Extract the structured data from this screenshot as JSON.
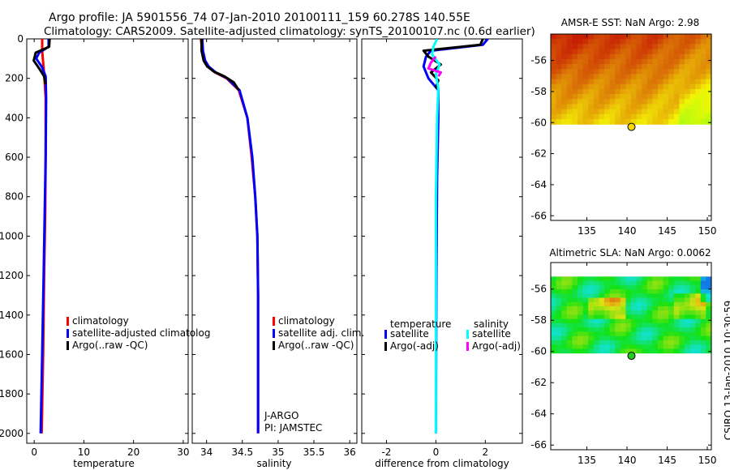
{
  "header": {
    "line1": "Argo profile: JA 5901556_74 07-Jan-2010 20100111_159 60.278S 140.55E",
    "line2": "Climatology: CARS2009. Satellite-adjusted climatology: synTS_20100107.nc (0.6d earlier)"
  },
  "credit": "CSIRO 13-Jan-2010 10:30:59",
  "chart_data": [
    {
      "id": "temperature",
      "type": "line",
      "xlabel": "temperature",
      "xlim": [
        -1.5,
        31
      ],
      "xticks": [
        0,
        10,
        20,
        30
      ],
      "ylim": [
        2050,
        0
      ],
      "yticks": [
        0,
        200,
        400,
        600,
        800,
        1000,
        1200,
        1400,
        1600,
        1800,
        2000
      ],
      "legend": [
        {
          "label": "climatology",
          "color": "#ff0000"
        },
        {
          "label": "satellite-adjusted climatolog",
          "color": "#0000ff"
        },
        {
          "label": "Argo(..raw -QC)",
          "color": "#000000"
        }
      ],
      "series": [
        {
          "name": "climatology",
          "color": "#ff0000",
          "width": 2,
          "x": [
            1.6,
            1.6,
            1.8,
            2.0,
            2.3,
            2.3,
            2.2,
            2.0,
            1.8,
            1.5
          ],
          "y": [
            0,
            60,
            120,
            180,
            300,
            600,
            900,
            1200,
            1600,
            2000
          ]
        },
        {
          "name": "satellite-adjusted climatology",
          "color": "#0000ff",
          "width": 2,
          "x": [
            2.9,
            2.9,
            1.0,
            0.4,
            1.5,
            2.3,
            2.4,
            2.3,
            2.1,
            1.9,
            1.6,
            1.3
          ],
          "y": [
            0,
            40,
            70,
            100,
            140,
            190,
            300,
            600,
            900,
            1200,
            1600,
            2000
          ]
        },
        {
          "name": "Argo(..raw -QC)",
          "color": "#000000",
          "width": 2,
          "x": [
            3.1,
            3.0,
            0.3,
            -0.1,
            1.0,
            2.0,
            2.3
          ],
          "y": [
            0,
            40,
            70,
            110,
            150,
            190,
            230
          ]
        }
      ]
    },
    {
      "id": "salinity",
      "type": "line",
      "xlabel": "salinity",
      "xlim": [
        33.8,
        36.1
      ],
      "xticks": [
        34,
        34.5,
        35,
        35.5,
        36
      ],
      "ylim": [
        2050,
        0
      ],
      "yticks": [
        0,
        200,
        400,
        600,
        800,
        1000,
        1200,
        1400,
        1600,
        1800,
        2000
      ],
      "annotation": [
        "J-ARGO",
        "PI: JAMSTEC"
      ],
      "legend": [
        {
          "label": "climatology",
          "color": "#ff0000"
        },
        {
          "label": "satellite adj. clim.",
          "color": "#0000ff"
        },
        {
          "label": "Argo(..raw -QC)",
          "color": "#000000"
        }
      ],
      "series": [
        {
          "name": "climatology",
          "color": "#ff0000",
          "width": 2,
          "x": [
            33.92,
            33.94,
            33.97,
            34.02,
            34.12,
            34.28,
            34.45,
            34.57,
            34.63,
            34.68,
            34.71,
            34.72,
            34.72,
            34.72
          ],
          "y": [
            0,
            60,
            110,
            140,
            170,
            200,
            260,
            400,
            600,
            800,
            1000,
            1300,
            1600,
            2000
          ]
        },
        {
          "name": "satellite adj. clim.",
          "color": "#0000ff",
          "width": 2,
          "x": [
            33.94,
            33.95,
            33.98,
            34.03,
            34.13,
            34.29,
            34.46,
            34.57,
            34.64,
            34.68,
            34.71,
            34.72,
            34.72,
            34.72
          ],
          "y": [
            0,
            60,
            110,
            140,
            170,
            200,
            260,
            400,
            600,
            800,
            1000,
            1300,
            1600,
            2000
          ]
        },
        {
          "name": "Argo(..raw -QC)",
          "color": "#000000",
          "width": 2,
          "x": [
            33.93,
            33.93,
            33.96,
            34.01,
            34.1,
            34.25,
            34.38,
            34.45
          ],
          "y": [
            0,
            60,
            110,
            140,
            165,
            190,
            220,
            260
          ]
        }
      ]
    },
    {
      "id": "difference",
      "type": "line",
      "xlabel": "difference from climatology",
      "xlim": [
        -3,
        3.5
      ],
      "xticks": [
        -2,
        0,
        2
      ],
      "ylim": [
        2050,
        0
      ],
      "yticks": [
        0,
        200,
        400,
        600,
        800,
        1000,
        1200,
        1400,
        1600,
        1800,
        2000
      ],
      "legend_headers": [
        "temperature",
        "salinity"
      ],
      "legend": [
        {
          "label": "satellite",
          "color": "#0000ff"
        },
        {
          "label": "Argo(-adj)",
          "color": "#000000"
        },
        {
          "label": "satellite",
          "color": "#00ffff"
        },
        {
          "label": "Argo(-adj)",
          "color": "#ff00ff"
        }
      ],
      "series": [
        {
          "name": "temperature satellite",
          "color": "#0000ff",
          "width": 2,
          "x": [
            2.1,
            1.9,
            -0.2,
            -0.4,
            -0.5,
            -0.3,
            0.1,
            0.1,
            0.05,
            0.02,
            0.0
          ],
          "y": [
            0,
            30,
            60,
            90,
            140,
            200,
            260,
            400,
            700,
            1200,
            2000
          ]
        },
        {
          "name": "temperature Argo(-adj)",
          "color": "#000000",
          "width": 2,
          "x": [
            1.9,
            1.8,
            -0.5,
            -0.3,
            0.2,
            -0.2,
            0.1,
            0.0
          ],
          "y": [
            0,
            30,
            60,
            90,
            130,
            170,
            210,
            250
          ]
        },
        {
          "name": "salinity satellite",
          "color": "#00ffff",
          "width": 2,
          "x": [
            0.05,
            -0.1,
            -0.15,
            0.15,
            0.0,
            0.1,
            0.05,
            0.0,
            0.0
          ],
          "y": [
            0,
            40,
            80,
            130,
            180,
            250,
            400,
            800,
            2000
          ]
        },
        {
          "name": "salinity Argo(-adj)",
          "color": "#ff00ff",
          "width": 2,
          "x": [
            0.0,
            -0.2,
            -0.3,
            0.2,
            0.1
          ],
          "y": [
            90,
            120,
            150,
            170,
            190
          ]
        }
      ]
    },
    {
      "id": "sst-map",
      "type": "heatmap",
      "title": "AMSR-E SST: NaN Argo: 2.98",
      "xlim": [
        130.5,
        150.5
      ],
      "ylim": [
        -66.3,
        -54.3
      ],
      "xticks": [
        135,
        140,
        145,
        150
      ],
      "yticks": [
        -56,
        -58,
        -60,
        -62,
        -64,
        -66
      ],
      "data_ylim": [
        -60.1,
        -54.3
      ],
      "colormap": "sst",
      "point": {
        "lon": 140.55,
        "lat": -60.278,
        "color": "#ffd700"
      }
    },
    {
      "id": "sla-map",
      "type": "heatmap",
      "title": "Altimetric SLA: NaN Argo: 0.0062",
      "xlim": [
        130.5,
        150.5
      ],
      "ylim": [
        -66.3,
        -54.3
      ],
      "xticks": [
        135,
        140,
        145,
        150
      ],
      "yticks": [
        -56,
        -58,
        -60,
        -62,
        -64,
        -66
      ],
      "data_ylim": [
        -60.1,
        -55.2
      ],
      "colormap": "sla",
      "point": {
        "lon": 140.55,
        "lat": -60.278,
        "color": "#22cc22"
      }
    }
  ]
}
